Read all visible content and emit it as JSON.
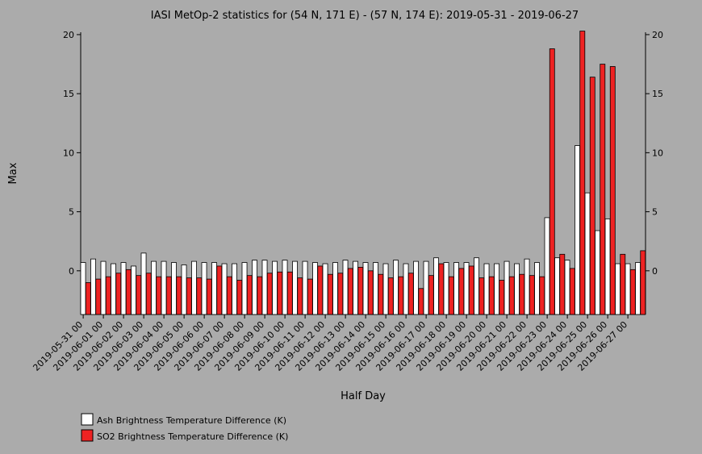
{
  "chart_data": {
    "type": "bar",
    "title": "IASI MetOp-2 statistics for (54 N, 171 E) - (57 N, 174 E): 2019-05-31 - 2019-06-27",
    "xlabel": "Half Day",
    "ylabel": "Max",
    "ylim": [
      -3.7,
      20.2
    ],
    "yticks": [
      0,
      5,
      10,
      15,
      20
    ],
    "grid": false,
    "legend_position": "bottom-left",
    "xtick_labels": [
      "2019-05-31 00",
      "2019-06-01 00",
      "2019-06-02 00",
      "2019-06-03 00",
      "2019-06-04 00",
      "2019-06-05 00",
      "2019-06-06 00",
      "2019-06-07 00",
      "2019-06-08 00",
      "2019-06-09 00",
      "2019-06-10 00",
      "2019-06-11 00",
      "2019-06-12 00",
      "2019-06-13 00",
      "2019-06-14 00",
      "2019-06-15 00",
      "2019-06-16 00",
      "2019-06-17 00",
      "2019-06-18 00",
      "2019-06-19 00",
      "2019-06-20 00",
      "2019-06-21 00",
      "2019-06-22 00",
      "2019-06-23 00",
      "2019-06-24 00",
      "2019-06-25 00",
      "2019-06-26 00",
      "2019-06-27 00"
    ],
    "series": [
      {
        "name": "Ash Brightness Temperature Difference (K)",
        "color": "#ffffff",
        "values": [
          0.7,
          1.0,
          0.8,
          0.6,
          0.7,
          0.4,
          1.5,
          0.8,
          0.8,
          0.7,
          0.5,
          0.8,
          0.7,
          0.7,
          0.6,
          0.6,
          0.7,
          0.9,
          0.9,
          0.8,
          0.9,
          0.8,
          0.8,
          0.7,
          0.6,
          0.7,
          0.9,
          0.8,
          0.7,
          0.7,
          0.6,
          0.9,
          0.6,
          0.8,
          0.8,
          1.1,
          0.7,
          0.7,
          0.7,
          1.1,
          0.6,
          0.6,
          0.8,
          0.6,
          1.0,
          0.7,
          4.5,
          1.1,
          0.9,
          10.6,
          6.6,
          3.4,
          4.4,
          0.6,
          0.6,
          0.7
        ]
      },
      {
        "name": "SO2 Brightness Temperature Difference (K)",
        "color": "#ee2222",
        "values": [
          -1.0,
          -0.7,
          -0.5,
          -0.2,
          0.1,
          -0.4,
          -0.2,
          -0.5,
          -0.5,
          -0.5,
          -0.6,
          -0.6,
          -0.7,
          0.4,
          -0.5,
          -0.8,
          -0.4,
          -0.5,
          -0.2,
          -0.1,
          -0.1,
          -0.6,
          -0.7,
          0.4,
          -0.3,
          -0.2,
          0.2,
          0.3,
          0.0,
          -0.3,
          -0.6,
          -0.5,
          -0.2,
          -1.5,
          -0.4,
          0.6,
          -0.5,
          0.2,
          0.4,
          -0.6,
          -0.5,
          -0.8,
          -0.5,
          -0.3,
          -0.4,
          -0.5,
          18.8,
          1.4,
          0.2,
          20.3,
          16.4,
          17.5,
          17.3,
          1.4,
          0.1,
          1.7
        ]
      }
    ]
  }
}
